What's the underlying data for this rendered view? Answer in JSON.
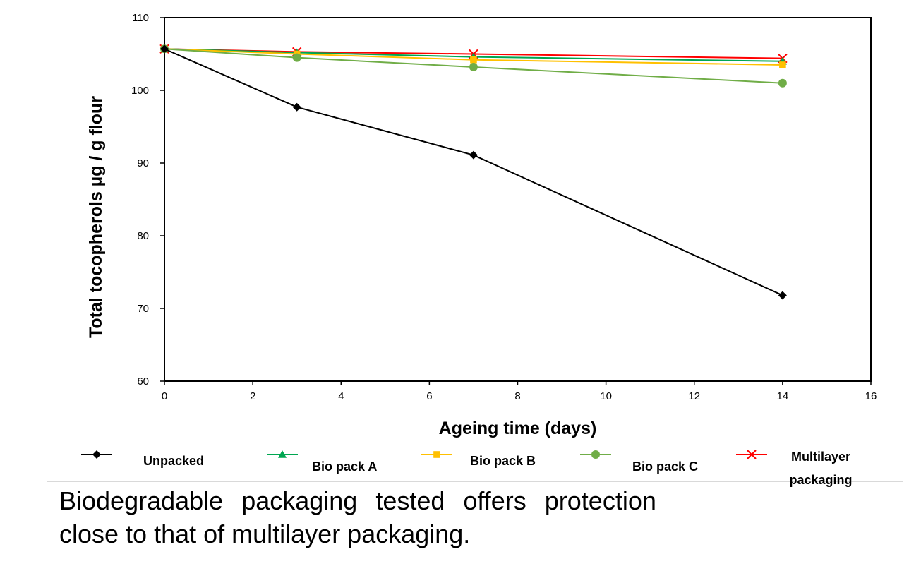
{
  "chart_data": {
    "type": "line",
    "xlabel": "Ageing time (days)",
    "ylabel": "Total tocopherols µg / g flour",
    "xlim": [
      0,
      16
    ],
    "ylim": [
      60,
      110
    ],
    "xticks": [
      0,
      2,
      4,
      6,
      8,
      10,
      12,
      14,
      16
    ],
    "yticks": [
      60,
      70,
      80,
      90,
      100,
      110
    ],
    "x": [
      0,
      3,
      7,
      14
    ],
    "grid": false,
    "legend_position": "bottom",
    "series": [
      {
        "name": "Unpacked",
        "values": [
          105.7,
          97.7,
          91.1,
          71.8
        ],
        "color": "#000000",
        "marker": "diamond"
      },
      {
        "name": "Bio pack A",
        "values": [
          105.7,
          105.2,
          104.6,
          104.0
        ],
        "color": "#00a651",
        "marker": "triangle"
      },
      {
        "name": "Bio pack B",
        "values": [
          105.7,
          105.0,
          104.2,
          103.5
        ],
        "color": "#ffc000",
        "marker": "square"
      },
      {
        "name": "Bio pack C",
        "values": [
          105.7,
          104.5,
          103.2,
          101.0
        ],
        "color": "#70ad47",
        "marker": "circle"
      },
      {
        "name": "Multilayer packaging",
        "values": [
          105.7,
          105.3,
          105.0,
          104.4
        ],
        "color": "#ff0000",
        "marker": "x"
      }
    ]
  },
  "caption": {
    "line1": "Biodegradable packaging tested offers protection",
    "line2": "close to that of multilayer packaging."
  }
}
